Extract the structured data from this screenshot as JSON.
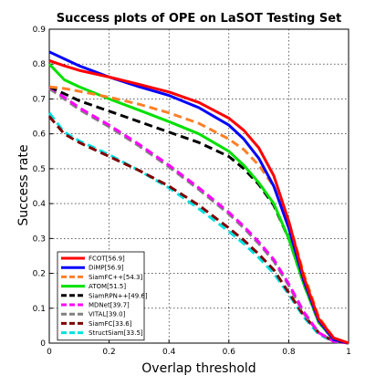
{
  "chart_data": {
    "type": "line",
    "title": "Success plots of OPE on LaSOT Testing Set",
    "xlabel": "Overlap threshold",
    "ylabel": "Success rate",
    "xlim": [
      0,
      1
    ],
    "ylim": [
      0,
      0.9
    ],
    "xticks": [
      0,
      0.2,
      0.4,
      0.6,
      0.8,
      1
    ],
    "xtick_labels": [
      "0",
      "0.2",
      "0.4",
      "0.6",
      "0.8",
      "1"
    ],
    "yticks": [
      0,
      0.1,
      0.2,
      0.3,
      0.4,
      0.5,
      0.6,
      0.7,
      0.8,
      0.9
    ],
    "ytick_labels": [
      "0",
      "0.1",
      "0.2",
      "0.3",
      "0.4",
      "0.5",
      "0.6",
      "0.7",
      "0.8",
      "0.9"
    ],
    "grid": true,
    "legend_position": "bottom-left",
    "x": [
      0,
      0.05,
      0.1,
      0.2,
      0.3,
      0.4,
      0.5,
      0.6,
      0.65,
      0.7,
      0.75,
      0.8,
      0.85,
      0.9,
      0.95,
      1
    ],
    "series": [
      {
        "name": "FCOT[56.9]",
        "color": "#ff0000",
        "dash": "solid",
        "values": [
          0.81,
          0.795,
          0.782,
          0.763,
          0.742,
          0.72,
          0.69,
          0.645,
          0.61,
          0.56,
          0.48,
          0.35,
          0.19,
          0.07,
          0.015,
          0
        ]
      },
      {
        "name": "DiMP[56.9]",
        "color": "#0000ff",
        "dash": "solid",
        "values": [
          0.835,
          0.815,
          0.795,
          0.763,
          0.735,
          0.71,
          0.675,
          0.625,
          0.585,
          0.53,
          0.45,
          0.33,
          0.18,
          0.065,
          0.01,
          0
        ]
      },
      {
        "name": "SiamFC++[54.3]",
        "color": "#ff7f27",
        "dash": "dash",
        "values": [
          0.735,
          0.73,
          0.722,
          0.705,
          0.685,
          0.66,
          0.63,
          0.585,
          0.555,
          0.51,
          0.45,
          0.35,
          0.2,
          0.075,
          0.015,
          0
        ]
      },
      {
        "name": "ATOM[51.5]",
        "color": "#00e000",
        "dash": "solid",
        "values": [
          0.8,
          0.755,
          0.735,
          0.7,
          0.668,
          0.635,
          0.6,
          0.55,
          0.51,
          0.46,
          0.4,
          0.3,
          0.17,
          0.06,
          0.01,
          0
        ]
      },
      {
        "name": "SiamRPN++[49.6]",
        "color": "#000000",
        "dash": "dash",
        "values": [
          0.735,
          0.715,
          0.695,
          0.665,
          0.635,
          0.605,
          0.575,
          0.535,
          0.5,
          0.455,
          0.395,
          0.3,
          0.17,
          0.06,
          0.01,
          0
        ]
      },
      {
        "name": "MDNet[39.7]",
        "color": "#ff00ff",
        "dash": "dash",
        "values": [
          0.735,
          0.705,
          0.675,
          0.625,
          0.57,
          0.51,
          0.445,
          0.375,
          0.335,
          0.29,
          0.24,
          0.17,
          0.09,
          0.03,
          0.005,
          0
        ]
      },
      {
        "name": "VITAL[39.0]",
        "color": "#808080",
        "dash": "dash",
        "values": [
          0.73,
          0.7,
          0.67,
          0.62,
          0.565,
          0.505,
          0.44,
          0.37,
          0.33,
          0.285,
          0.235,
          0.165,
          0.085,
          0.03,
          0.005,
          0
        ]
      },
      {
        "name": "SiamFC[33.6]",
        "color": "#800000",
        "dash": "dash",
        "values": [
          0.65,
          0.6,
          0.575,
          0.535,
          0.495,
          0.45,
          0.395,
          0.33,
          0.295,
          0.255,
          0.21,
          0.145,
          0.08,
          0.03,
          0.005,
          0
        ]
      },
      {
        "name": "StructSiam[33.5]",
        "color": "#00e0e0",
        "dash": "dash",
        "values": [
          0.66,
          0.605,
          0.58,
          0.54,
          0.495,
          0.445,
          0.385,
          0.32,
          0.285,
          0.245,
          0.2,
          0.14,
          0.075,
          0.025,
          0.005,
          0
        ]
      }
    ]
  }
}
